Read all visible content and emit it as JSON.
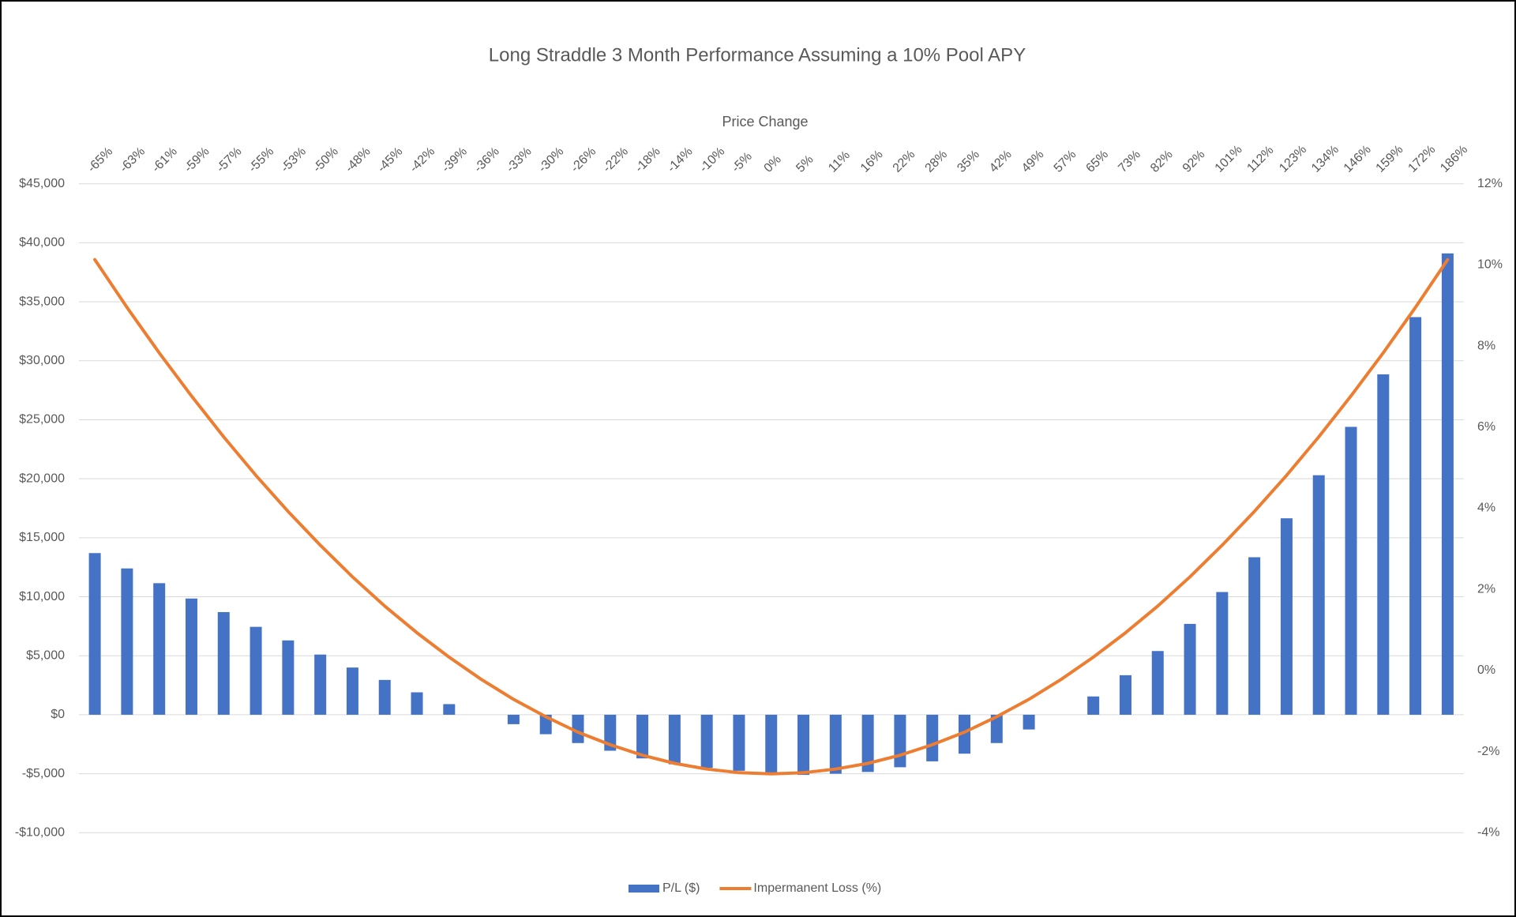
{
  "chart_data": {
    "type": "bar_line",
    "title": "Long Straddle 3 Month Performance Assuming a 10% Pool APY",
    "x_label": "Price Change",
    "categories": [
      "-65%",
      "-63%",
      "-61%",
      "-59%",
      "-57%",
      "-55%",
      "-53%",
      "-50%",
      "-48%",
      "-45%",
      "-42%",
      "-39%",
      "-36%",
      "-33%",
      "-30%",
      "-26%",
      "-22%",
      "-18%",
      "-14%",
      "-10%",
      "-5%",
      "0%",
      "5%",
      "11%",
      "16%",
      "22%",
      "28%",
      "35%",
      "42%",
      "49%",
      "57%",
      "65%",
      "73%",
      "82%",
      "92%",
      "101%",
      "112%",
      "123%",
      "134%",
      "146%",
      "159%",
      "172%",
      "186%"
    ],
    "series": [
      {
        "name": "P/L ($)",
        "type": "bar",
        "color": "#4472c4",
        "values": [
          13700,
          12400,
          11150,
          9850,
          8700,
          7450,
          6300,
          5100,
          4000,
          2950,
          1900,
          900,
          0,
          -800,
          -1650,
          -2400,
          -3050,
          -3700,
          -4200,
          -4500,
          -4750,
          -4900,
          -5100,
          -5000,
          -4850,
          -4450,
          -3950,
          -3300,
          -2400,
          -1250,
          0,
          1550,
          3350,
          5400,
          7700,
          10400,
          13350,
          16650,
          20300,
          24400,
          28850,
          33700,
          39100
        ]
      },
      {
        "name": "Impermanent Loss (%)",
        "type": "line",
        "axis": "y2",
        "color": "#ed7d31",
        "values": [
          10.13,
          8.95,
          7.83,
          6.77,
          5.76,
          4.81,
          3.92,
          3.09,
          2.31,
          1.59,
          0.93,
          0.33,
          -0.22,
          -0.71,
          -1.14,
          -1.52,
          -1.83,
          -2.09,
          -2.29,
          -2.43,
          -2.52,
          -2.55,
          -2.52,
          -2.43,
          -2.29,
          -2.09,
          -1.83,
          -1.52,
          -1.14,
          -0.71,
          -0.22,
          0.33,
          0.93,
          1.59,
          2.31,
          3.09,
          3.92,
          4.81,
          5.76,
          6.77,
          7.83,
          8.95,
          10.13
        ]
      }
    ],
    "ylim": [
      -10000,
      45000
    ],
    "yticks": [
      {
        "value": -10000,
        "label": "-$10,000"
      },
      {
        "value": -5000,
        "label": "-$5,000"
      },
      {
        "value": 0,
        "label": "$0"
      },
      {
        "value": 5000,
        "label": "$5,000"
      },
      {
        "value": 10000,
        "label": "$10,000"
      },
      {
        "value": 15000,
        "label": "$15,000"
      },
      {
        "value": 20000,
        "label": "$20,000"
      },
      {
        "value": 25000,
        "label": "$25,000"
      },
      {
        "value": 30000,
        "label": "$30,000"
      },
      {
        "value": 35000,
        "label": "$35,000"
      },
      {
        "value": 40000,
        "label": "$40,000"
      },
      {
        "value": 45000,
        "label": "$45,000"
      }
    ],
    "y2lim": [
      -4,
      12
    ],
    "y2ticks": [
      {
        "value": -4,
        "label": "-4%"
      },
      {
        "value": -2,
        "label": "-2%"
      },
      {
        "value": 0,
        "label": "0%"
      },
      {
        "value": 2,
        "label": "2%"
      },
      {
        "value": 4,
        "label": "4%"
      },
      {
        "value": 6,
        "label": "6%"
      },
      {
        "value": 8,
        "label": "8%"
      },
      {
        "value": 10,
        "label": "10%"
      },
      {
        "value": 12,
        "label": "12%"
      }
    ],
    "grid": true,
    "legend": "bottom"
  }
}
